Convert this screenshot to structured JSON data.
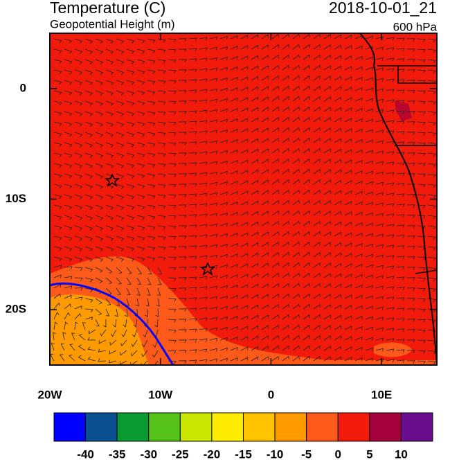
{
  "header": {
    "title": "Temperature (C)",
    "subtitle": "Geopotential Height (m)",
    "date": "2018-10-01_21",
    "level": "600 hPa"
  },
  "map": {
    "xlim": [
      -20,
      15
    ],
    "ylim": [
      -25,
      5
    ],
    "xticks": [
      {
        "value": -20,
        "label": "20W"
      },
      {
        "value": -10,
        "label": "10W"
      },
      {
        "value": 0,
        "label": "0"
      },
      {
        "value": 10,
        "label": "10E"
      }
    ],
    "yticks": [
      {
        "value": 0,
        "label": "0"
      },
      {
        "value": -10,
        "label": "10S"
      },
      {
        "value": -20,
        "label": "20S"
      }
    ]
  },
  "colorbar": {
    "colors": [
      "#0000ff",
      "#0a4f90",
      "#0a9a32",
      "#55c31a",
      "#c8e600",
      "#ffec00",
      "#ffc300",
      "#ff9a00",
      "#ff5a1a",
      "#f21a0a",
      "#a3003c",
      "#6a0d8c"
    ],
    "levels": [
      -40,
      -35,
      -30,
      -25,
      -20,
      -15,
      -10,
      -5,
      0,
      5,
      10
    ]
  }
}
